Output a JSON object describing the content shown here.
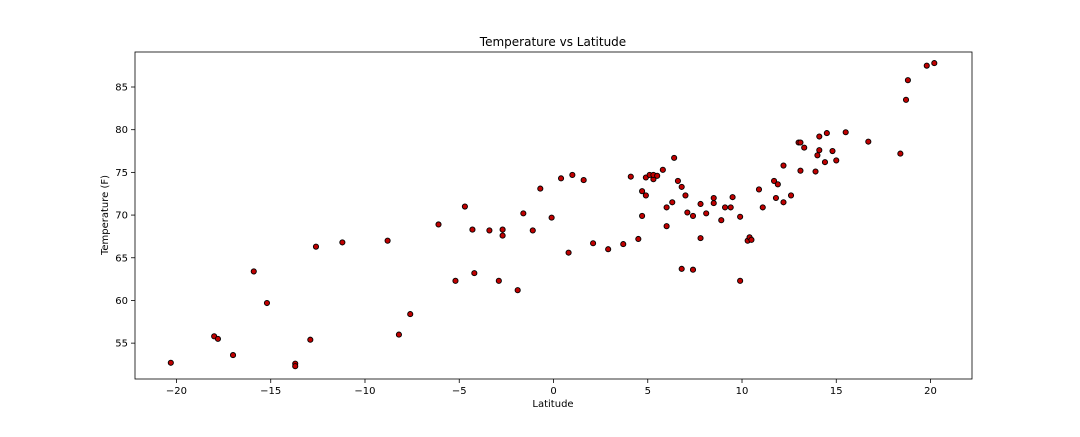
{
  "chart_data": {
    "type": "scatter",
    "title": "Temperature vs Latitude",
    "xlabel": "Latitude",
    "ylabel": "Temperature (F)",
    "xlim": [
      -22.2,
      22.2
    ],
    "ylim": [
      50.8,
      89.1
    ],
    "xticks": [
      -20,
      -15,
      -10,
      -5,
      0,
      5,
      10,
      15,
      20
    ],
    "yticks": [
      55,
      60,
      65,
      70,
      75,
      80,
      85
    ],
    "grid": false,
    "legend": "none",
    "marker_color": "#c00000",
    "marker_edge": "#000000",
    "points": [
      [
        -20.3,
        52.7
      ],
      [
        -18.0,
        55.8
      ],
      [
        -17.8,
        55.5
      ],
      [
        -17.0,
        53.6
      ],
      [
        -15.9,
        63.4
      ],
      [
        -15.2,
        59.7
      ],
      [
        -13.7,
        52.6
      ],
      [
        -13.7,
        52.3
      ],
      [
        -12.9,
        55.4
      ],
      [
        -12.6,
        66.3
      ],
      [
        -11.2,
        66.8
      ],
      [
        -8.8,
        67.0
      ],
      [
        -8.2,
        56.0
      ],
      [
        -7.6,
        58.4
      ],
      [
        -6.1,
        68.9
      ],
      [
        -5.2,
        62.3
      ],
      [
        -4.7,
        71.0
      ],
      [
        -4.3,
        68.3
      ],
      [
        -4.2,
        63.2
      ],
      [
        -3.4,
        68.2
      ],
      [
        -2.9,
        62.3
      ],
      [
        -2.7,
        68.3
      ],
      [
        -2.7,
        67.6
      ],
      [
        -1.9,
        61.2
      ],
      [
        -1.6,
        70.2
      ],
      [
        -1.1,
        68.2
      ],
      [
        -0.7,
        73.1
      ],
      [
        -0.1,
        69.7
      ],
      [
        0.4,
        74.3
      ],
      [
        0.8,
        65.6
      ],
      [
        1.0,
        74.7
      ],
      [
        1.6,
        74.1
      ],
      [
        2.1,
        66.7
      ],
      [
        2.9,
        66.0
      ],
      [
        3.7,
        66.6
      ],
      [
        4.1,
        74.5
      ],
      [
        4.5,
        67.2
      ],
      [
        4.7,
        72.8
      ],
      [
        4.7,
        69.9
      ],
      [
        4.9,
        74.4
      ],
      [
        4.9,
        72.3
      ],
      [
        5.1,
        74.7
      ],
      [
        5.3,
        74.2
      ],
      [
        5.3,
        74.7
      ],
      [
        5.5,
        74.6
      ],
      [
        5.8,
        75.3
      ],
      [
        6.0,
        68.7
      ],
      [
        6.0,
        70.9
      ],
      [
        6.3,
        71.5
      ],
      [
        6.4,
        76.7
      ],
      [
        6.6,
        74.0
      ],
      [
        6.8,
        73.3
      ],
      [
        6.8,
        63.7
      ],
      [
        7.0,
        72.3
      ],
      [
        7.1,
        70.3
      ],
      [
        7.4,
        69.9
      ],
      [
        7.4,
        63.6
      ],
      [
        7.8,
        71.3
      ],
      [
        7.8,
        67.3
      ],
      [
        8.1,
        70.2
      ],
      [
        8.5,
        72.0
      ],
      [
        8.5,
        71.4
      ],
      [
        8.9,
        69.4
      ],
      [
        9.1,
        70.9
      ],
      [
        9.4,
        70.9
      ],
      [
        9.5,
        72.1
      ],
      [
        9.9,
        69.8
      ],
      [
        9.9,
        62.3
      ],
      [
        10.3,
        67.0
      ],
      [
        10.4,
        67.4
      ],
      [
        10.5,
        67.1
      ],
      [
        10.9,
        73.0
      ],
      [
        11.1,
        70.9
      ],
      [
        11.7,
        74.0
      ],
      [
        11.8,
        72.0
      ],
      [
        11.9,
        73.6
      ],
      [
        12.2,
        75.8
      ],
      [
        12.2,
        71.5
      ],
      [
        12.6,
        72.3
      ],
      [
        13.0,
        78.5
      ],
      [
        13.1,
        78.5
      ],
      [
        13.1,
        75.2
      ],
      [
        13.3,
        77.9
      ],
      [
        13.9,
        75.1
      ],
      [
        14.0,
        77.0
      ],
      [
        14.1,
        79.2
      ],
      [
        14.1,
        77.6
      ],
      [
        14.4,
        76.2
      ],
      [
        14.5,
        79.6
      ],
      [
        14.8,
        77.5
      ],
      [
        15.0,
        76.4
      ],
      [
        15.5,
        79.7
      ],
      [
        16.7,
        78.6
      ],
      [
        18.4,
        77.2
      ],
      [
        18.7,
        83.5
      ],
      [
        18.8,
        85.8
      ],
      [
        19.8,
        87.5
      ],
      [
        20.2,
        87.8
      ]
    ]
  }
}
